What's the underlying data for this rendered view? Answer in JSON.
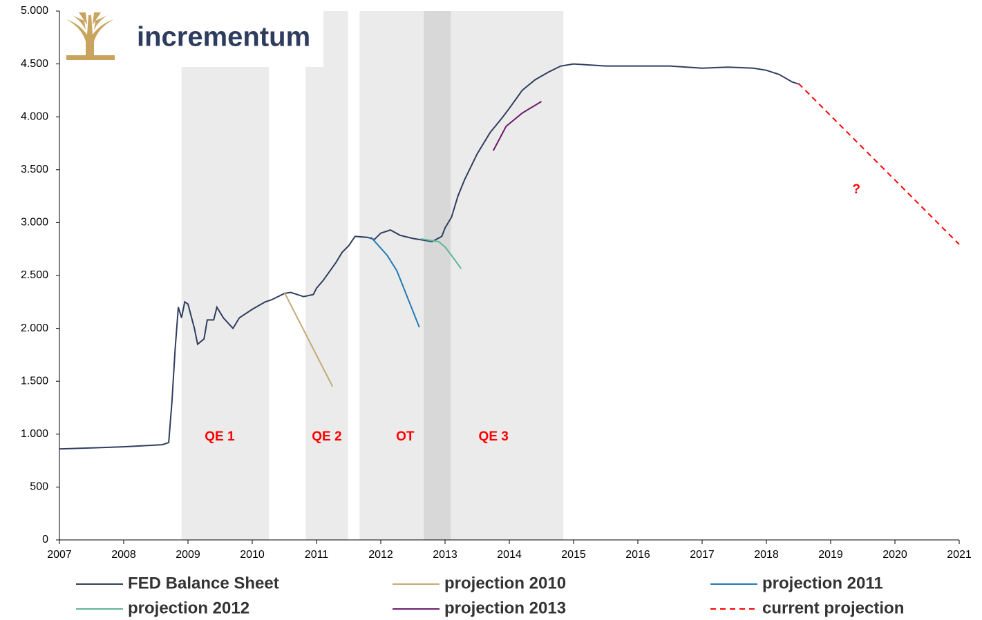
{
  "chart_data": {
    "type": "line",
    "logo": "incrementum",
    "xlim": [
      2007,
      2021
    ],
    "xticks": [
      2007,
      2008,
      2009,
      2010,
      2011,
      2012,
      2013,
      2014,
      2015,
      2016,
      2017,
      2018,
      2019,
      2020,
      2021
    ],
    "ylim": [
      0,
      5000
    ],
    "yticks": [
      0,
      500,
      {
        "value": 1000,
        "label": "1.000"
      },
      {
        "value": 1500,
        "label": "1.500"
      },
      {
        "value": 2000,
        "label": "2.000"
      },
      {
        "value": 2500,
        "label": "2.500"
      },
      {
        "value": 3000,
        "label": "3.000"
      },
      {
        "value": 3500,
        "label": "3.500"
      },
      {
        "value": 4000,
        "label": "4.000"
      },
      {
        "value": 4500,
        "label": "4.500"
      },
      {
        "value": 5000,
        "label": "5.000"
      }
    ],
    "grid": false,
    "legend": "bottom",
    "regions": [
      {
        "label": "QE 1",
        "start": 2008.9,
        "end": 2010.26
      },
      {
        "label": "QE 2",
        "start": 2010.83,
        "end": 2011.49
      },
      {
        "label": "OT",
        "start": 2011.67,
        "end": 2013.09
      },
      {
        "label": "QE 3",
        "start": 2012.67,
        "end": 2014.84
      }
    ],
    "annotations": [
      {
        "text": "?",
        "x": 2019.4,
        "y": 3310
      }
    ],
    "series": [
      {
        "name": "FED Balance Sheet",
        "color": "#2e3d5e",
        "dashed": false,
        "x": [
          2007.0,
          2007.5,
          2008.0,
          2008.3,
          2008.6,
          2008.7,
          2008.75,
          2008.8,
          2008.85,
          2008.9,
          2008.95,
          2009.0,
          2009.1,
          2009.15,
          2009.25,
          2009.3,
          2009.4,
          2009.45,
          2009.55,
          2009.7,
          2009.8,
          2010.0,
          2010.2,
          2010.3,
          2010.5,
          2010.6,
          2010.8,
          2010.95,
          2011.0,
          2011.1,
          2011.3,
          2011.4,
          2011.5,
          2011.6,
          2011.8,
          2011.9,
          2012.0,
          2012.15,
          2012.3,
          2012.5,
          2012.7,
          2012.8,
          2012.95,
          2013.0,
          2013.1,
          2013.2,
          2013.3,
          2013.5,
          2013.7,
          2013.9,
          2014.0,
          2014.2,
          2014.4,
          2014.6,
          2014.8,
          2015.0,
          2015.5,
          2016.0,
          2016.5,
          2017.0,
          2017.4,
          2017.8,
          2018.0,
          2018.2,
          2018.4,
          2018.5
        ],
        "values": [
          860,
          870,
          880,
          890,
          900,
          920,
          1300,
          1800,
          2200,
          2100,
          2250,
          2230,
          2000,
          1850,
          1900,
          2080,
          2080,
          2200,
          2100,
          2000,
          2100,
          2180,
          2250,
          2270,
          2330,
          2340,
          2300,
          2320,
          2380,
          2450,
          2620,
          2720,
          2780,
          2870,
          2860,
          2840,
          2900,
          2930,
          2880,
          2850,
          2830,
          2820,
          2870,
          2950,
          3050,
          3250,
          3400,
          3650,
          3850,
          4000,
          4080,
          4250,
          4350,
          4420,
          4480,
          4500,
          4480,
          4480,
          4480,
          4460,
          4470,
          4460,
          4440,
          4400,
          4330,
          4310
        ]
      },
      {
        "name": "projection 2010",
        "color": "#c4aa76",
        "dashed": false,
        "x": [
          2010.5,
          2011.25
        ],
        "values": [
          2340,
          1450
        ]
      },
      {
        "name": "projection 2011",
        "color": "#1f7ab5",
        "dashed": false,
        "x": [
          2011.85,
          2012.1,
          2012.25,
          2012.6
        ],
        "values": [
          2860,
          2690,
          2545,
          2010
        ]
      },
      {
        "name": "projection 2012",
        "color": "#5cb596",
        "dashed": false,
        "x": [
          2012.62,
          2012.9,
          2013.0,
          2013.1,
          2013.25
        ],
        "values": [
          2846,
          2820,
          2770,
          2690,
          2565
        ]
      },
      {
        "name": "projection 2013",
        "color": "#6b1a6b",
        "dashed": false,
        "x": [
          2013.75,
          2013.95,
          2014.2,
          2014.5
        ],
        "values": [
          3680,
          3910,
          4035,
          4145
        ]
      },
      {
        "name": "current projection",
        "color": "#ff0000",
        "dashed": true,
        "x": [
          2018.5,
          2021.0
        ],
        "values": [
          4315,
          2794
        ]
      }
    ]
  }
}
